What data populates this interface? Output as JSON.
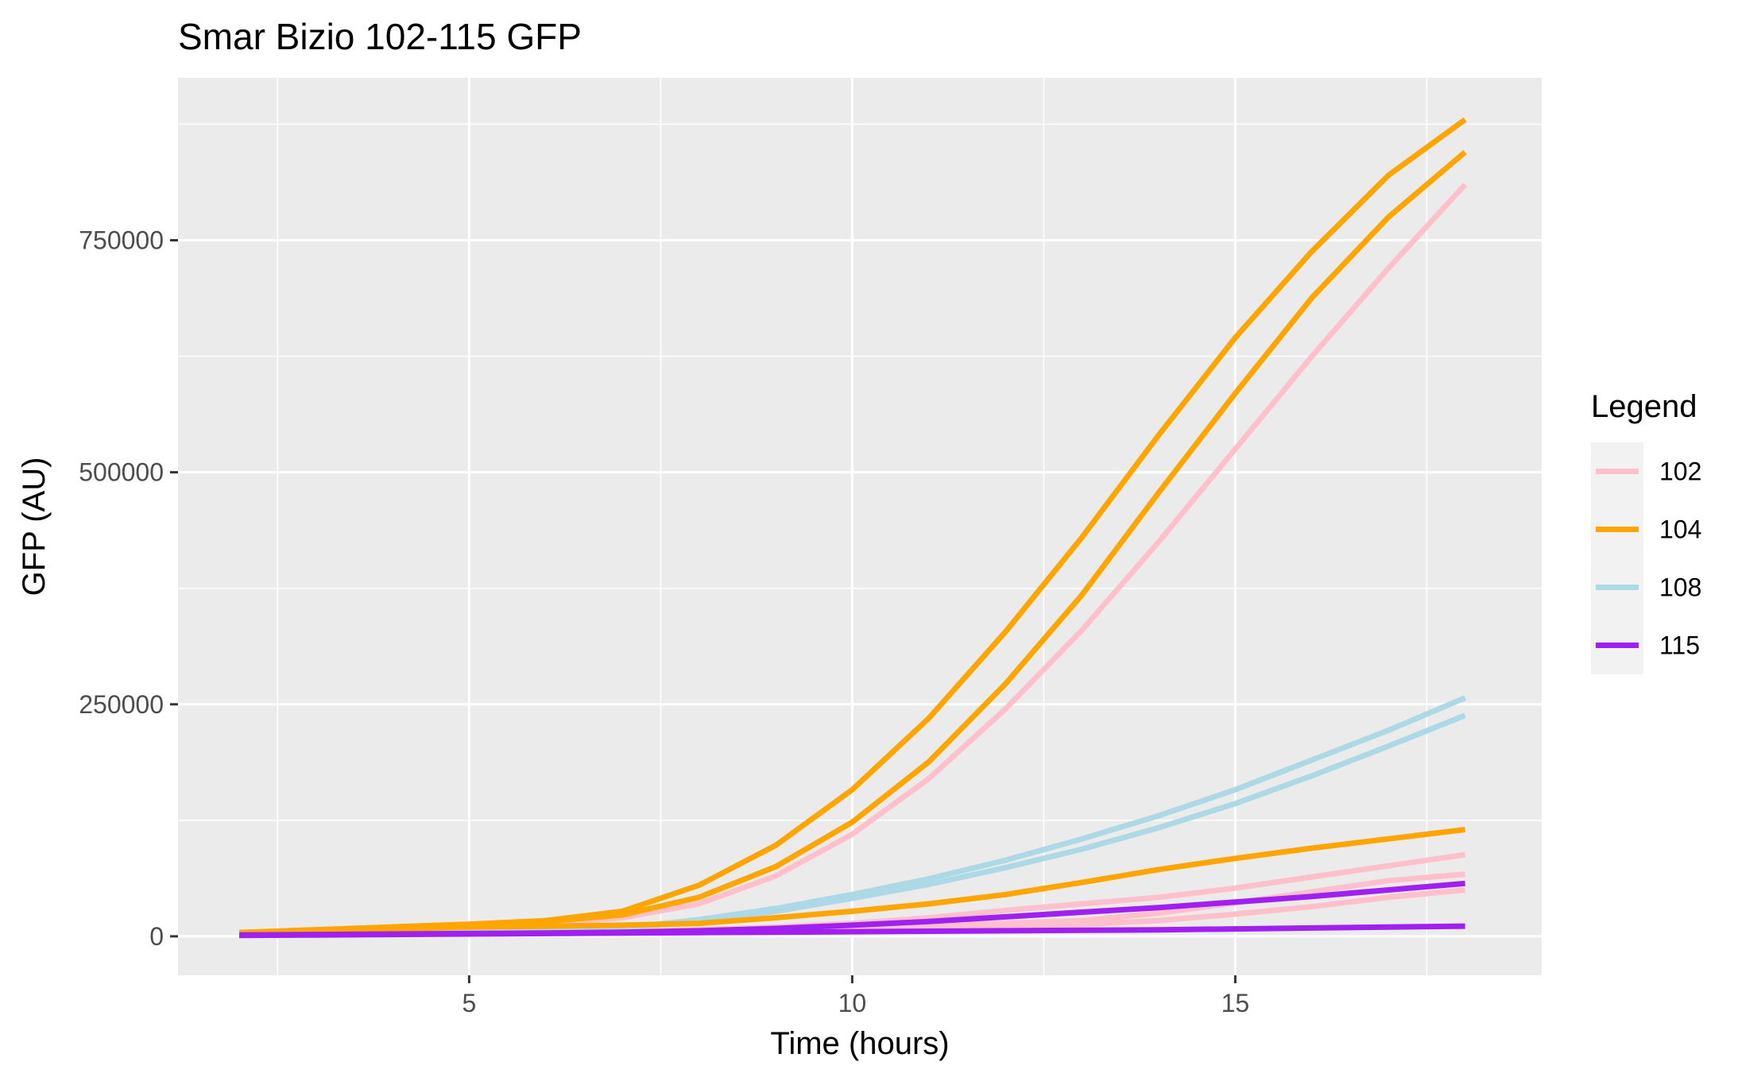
{
  "chart_data": {
    "type": "line",
    "title": "Smar Bizio 102-115 GFP",
    "xlabel": "Time (hours)",
    "ylabel": "GFP (AU)",
    "xlim": [
      1.2,
      19.0
    ],
    "ylim": [
      -42000,
      925000
    ],
    "x_ticks": [
      5,
      10,
      15
    ],
    "x_tick_labels": [
      "5",
      "10",
      "15"
    ],
    "y_ticks": [
      0,
      250000,
      500000,
      750000
    ],
    "y_tick_labels": [
      "0",
      "250000",
      "500000",
      "750000"
    ],
    "x_minor": [
      2.5,
      7.5,
      12.5,
      17.5
    ],
    "y_minor": [
      125000,
      375000,
      625000,
      875000
    ],
    "grid": true,
    "legend": {
      "title": "Legend",
      "position": "right"
    },
    "series": [
      {
        "name": "102",
        "color": "#FFC0CB",
        "x": [
          2,
          3,
          4,
          5,
          6,
          7,
          8,
          9,
          10,
          11,
          12,
          13,
          14,
          15,
          16,
          17,
          18
        ],
        "values": [
          3000,
          5000,
          8000,
          11000,
          14000,
          20000,
          35000,
          65000,
          110000,
          170000,
          245000,
          330000,
          425000,
          525000,
          625000,
          720000,
          810000
        ]
      },
      {
        "name": "102",
        "color": "#FFC0CB",
        "x": [
          2,
          3,
          4,
          5,
          6,
          7,
          8,
          9,
          10,
          11,
          12,
          13,
          14,
          15,
          16,
          17,
          18
        ],
        "values": [
          1500,
          2000,
          2500,
          3000,
          3500,
          4500,
          6000,
          8000,
          10000,
          12000,
          14000,
          17000,
          25000,
          36000,
          48000,
          60000,
          67000
        ]
      },
      {
        "name": "102",
        "color": "#FFC0CB",
        "x": [
          2,
          3,
          4,
          5,
          6,
          7,
          8,
          9,
          10,
          11,
          12,
          13,
          14,
          15,
          16,
          17,
          18
        ],
        "values": [
          1500,
          2000,
          2500,
          3000,
          3500,
          5000,
          7000,
          10000,
          14000,
          20000,
          28000,
          35000,
          42000,
          52000,
          64000,
          76000,
          88000
        ]
      },
      {
        "name": "102",
        "color": "#FFC0CB",
        "x": [
          2,
          3,
          4,
          5,
          6,
          7,
          8,
          9,
          10,
          11,
          12,
          13,
          14,
          15,
          16,
          17,
          18
        ],
        "values": [
          1500,
          2000,
          2500,
          3000,
          3500,
          4000,
          5000,
          6000,
          7500,
          9000,
          11000,
          13000,
          17000,
          24000,
          32000,
          42000,
          50000
        ]
      },
      {
        "name": "108",
        "color": "#ADD8E6",
        "x": [
          2,
          3,
          4,
          5,
          6,
          7,
          8,
          9,
          10,
          11,
          12,
          13,
          14,
          15,
          16,
          17,
          18
        ],
        "values": [
          2000,
          3000,
          4000,
          5000,
          6000,
          9000,
          18000,
          30000,
          45000,
          62000,
          82000,
          105000,
          130000,
          158000,
          190000,
          222000,
          257000
        ]
      },
      {
        "name": "108",
        "color": "#ADD8E6",
        "x": [
          2,
          3,
          4,
          5,
          6,
          7,
          8,
          9,
          10,
          11,
          12,
          13,
          14,
          15,
          16,
          17,
          18
        ],
        "values": [
          2000,
          3000,
          4000,
          5000,
          6000,
          9000,
          16000,
          27000,
          41000,
          56000,
          74000,
          94000,
          117000,
          143000,
          173000,
          205000,
          238000
        ]
      },
      {
        "name": "104",
        "color": "#FFA500",
        "x": [
          2,
          3,
          4,
          5,
          6,
          7,
          8,
          9,
          10,
          11,
          12,
          13,
          14,
          15,
          16,
          17,
          18
        ],
        "values": [
          4000,
          7000,
          10000,
          13000,
          17000,
          27000,
          55000,
          98000,
          158000,
          235000,
          328000,
          430000,
          540000,
          645000,
          738000,
          820000,
          880000
        ]
      },
      {
        "name": "104",
        "color": "#FFA500",
        "x": [
          2,
          3,
          4,
          5,
          6,
          7,
          8,
          9,
          10,
          11,
          12,
          13,
          14,
          15,
          16,
          17,
          18
        ],
        "values": [
          4000,
          7000,
          10000,
          13000,
          16000,
          23000,
          42000,
          75000,
          123000,
          188000,
          272000,
          368000,
          478000,
          585000,
          688000,
          775000,
          845000
        ]
      },
      {
        "name": "104",
        "color": "#FFA500",
        "x": [
          2,
          3,
          4,
          5,
          6,
          7,
          8,
          9,
          10,
          11,
          12,
          13,
          14,
          15,
          16,
          17,
          18
        ],
        "values": [
          3000,
          5000,
          8000,
          10000,
          11000,
          12000,
          14000,
          20000,
          27000,
          35000,
          45000,
          58000,
          72000,
          84000,
          95000,
          105000,
          115000
        ]
      },
      {
        "name": "115",
        "color": "#A020F0",
        "x": [
          2,
          3,
          4,
          5,
          6,
          7,
          8,
          9,
          10,
          11,
          12,
          13,
          14,
          15,
          16,
          17,
          18
        ],
        "values": [
          1500,
          2000,
          2500,
          3000,
          3500,
          4500,
          6000,
          8500,
          12000,
          16000,
          21000,
          26000,
          31000,
          37000,
          43000,
          50000,
          57000
        ]
      },
      {
        "name": "115",
        "color": "#A020F0",
        "x": [
          2,
          3,
          4,
          5,
          6,
          7,
          8,
          9,
          10,
          11,
          12,
          13,
          14,
          15,
          16,
          17,
          18
        ],
        "values": [
          1000,
          1500,
          2000,
          2500,
          3000,
          3500,
          4000,
          4500,
          5000,
          5500,
          6000,
          6500,
          7000,
          8000,
          9000,
          10000,
          11000
        ]
      }
    ],
    "legend_items": [
      {
        "name": "102",
        "color": "#FFC0CB"
      },
      {
        "name": "104",
        "color": "#FFA500"
      },
      {
        "name": "108",
        "color": "#ADD8E6"
      },
      {
        "name": "115",
        "color": "#A020F0"
      }
    ]
  }
}
